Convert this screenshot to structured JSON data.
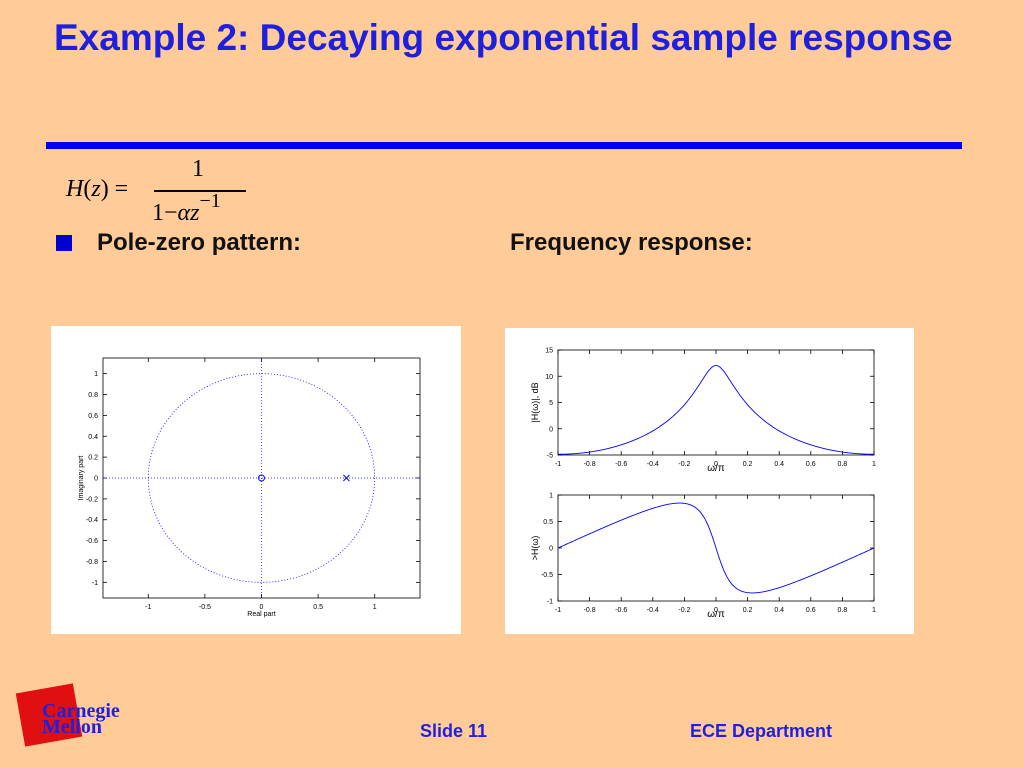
{
  "slide": {
    "title": "Example 2: Decaying exponential sample response",
    "formula": {
      "lhs_fn": "H",
      "lhs_var": "z",
      "numerator": "1",
      "den_one": "1",
      "den_minus": "−",
      "den_alpha": "α",
      "den_z": "z",
      "den_exp": "−1"
    },
    "bullet_label": "Pole-zero pattern:",
    "right_label": "Frequency response:",
    "footer": {
      "slide_number": "Slide 11",
      "department": "ECE Department",
      "logo_line1": "Carnegie",
      "logo_line2": "Mellon"
    },
    "colors": {
      "title": "#1F1FE0",
      "background": "#FFCC99",
      "rule": "#0000EE",
      "plot_line": "#0000FF"
    }
  },
  "chart_data": [
    {
      "type": "scatter",
      "xlabel": "Real part",
      "ylabel": "Imaginary part",
      "xlim": [
        -1.4,
        1.4
      ],
      "ylim": [
        -1.15,
        1.15
      ],
      "xticks": [
        "-1",
        "-0.5",
        "0",
        "0.5",
        "1"
      ],
      "yticks": [
        "1",
        "0.8",
        "0.6",
        "0.4",
        "0.2",
        "0",
        "-0.2",
        "-0.4",
        "-0.6",
        "-0.8",
        "-1"
      ],
      "unit_circle": true,
      "zeros": [
        [
          0,
          0
        ]
      ],
      "poles": [
        [
          0.75,
          0
        ]
      ]
    },
    {
      "type": "line",
      "xlabel": "ω/π",
      "ylabel": "|H(ω)|, dB",
      "xlim": [
        -1,
        1
      ],
      "ylim": [
        -5,
        15
      ],
      "xticks": [
        "-1",
        "-0.8",
        "-0.6",
        "-0.4",
        "-0.2",
        "0",
        "0.2",
        "0.4",
        "0.6",
        "0.8",
        "1"
      ],
      "yticks": [
        "15",
        "10",
        "5",
        "0",
        "-5"
      ],
      "alpha": 0.75,
      "quantity": "magnitude_db"
    },
    {
      "type": "line",
      "xlabel": "ω/π",
      "ylabel": ">H(ω)",
      "xlim": [
        -1,
        1
      ],
      "ylim": [
        -1,
        1
      ],
      "xticks": [
        "-1",
        "-0.8",
        "-0.6",
        "-0.4",
        "-0.2",
        "0",
        "0.2",
        "0.4",
        "0.6",
        "0.8",
        "1"
      ],
      "yticks": [
        "1",
        "0.5",
        "0",
        "-0.5",
        "-1"
      ],
      "alpha": 0.75,
      "quantity": "phase"
    }
  ]
}
